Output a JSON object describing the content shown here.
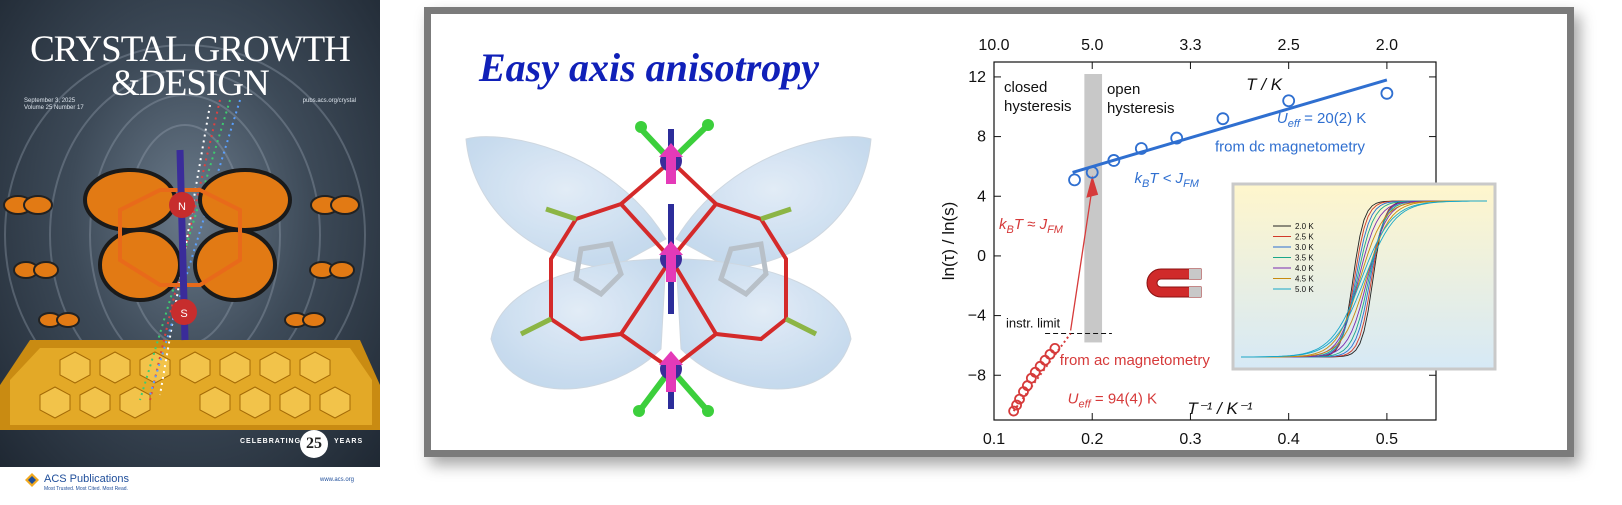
{
  "cover": {
    "title_line1": "CRYSTAL GROWTH",
    "title_line2": "&DESIGN",
    "date": "September 3, 2025",
    "volume": "Volume 25 Number 17",
    "url": "pubs.acs.org/crystal",
    "celebrating": "CELEBRATING",
    "badge": "25",
    "years": "YEARS",
    "atom_n": "N",
    "atom_s": "S"
  },
  "footer": {
    "publisher": "ACS Publications",
    "tagline": "Most Trusted. Most Cited. Most Read.",
    "url": "www.acs.org"
  },
  "toc": {
    "headline": "Easy axis anisotropy"
  },
  "chart_data": {
    "type": "scatter",
    "xlabel": "T⁻¹ / K⁻¹",
    "ylabel": "ln(τ) / ln(s)",
    "top_axis_label": "T / K",
    "xlim": [
      0.1,
      0.55
    ],
    "ylim": [
      -11,
      13
    ],
    "x_ticks": [
      "0.1",
      "0.2",
      "0.3",
      "0.4",
      "0.5"
    ],
    "y_ticks": [
      "12",
      "8",
      "4",
      "0",
      "−4",
      "−8"
    ],
    "top_ticks": [
      "10.0",
      "5.0",
      "3.3",
      "2.5",
      "2.0"
    ],
    "series": [
      {
        "name": "from dc magnetometry",
        "color": "#2f6fd0",
        "x": [
          0.182,
          0.2,
          0.222,
          0.25,
          0.286,
          0.333,
          0.4,
          0.5
        ],
        "y": [
          5.1,
          5.6,
          6.4,
          7.2,
          7.9,
          9.2,
          10.4,
          10.9
        ]
      },
      {
        "name": "from ac magnetometry",
        "color": "#d63a3a",
        "x": [
          0.12,
          0.123,
          0.126,
          0.13,
          0.134,
          0.138,
          0.142,
          0.147,
          0.152,
          0.157,
          0.162
        ],
        "y": [
          -10.4,
          -10.0,
          -9.6,
          -9.1,
          -8.7,
          -8.2,
          -7.8,
          -7.4,
          -7.0,
          -6.6,
          -6.2
        ]
      }
    ],
    "fit_dc": {
      "x": [
        0.18,
        0.5
      ],
      "y": [
        5.6,
        11.8
      ]
    },
    "fit_ac": {
      "x": [
        0.12,
        0.178
      ],
      "y": [
        -10.4,
        -5.2
      ]
    },
    "instr_limit_y": -5.2,
    "band_x": [
      0.192,
      0.21
    ],
    "annotations": {
      "closed": "closed",
      "closed2": "hysteresis",
      "open": "open",
      "open2": "hysteresis",
      "instr": "instr. limit",
      "ueff_dc": "U",
      "ueff_dc_sub": "eff",
      "ueff_dc_val": " = 20(2) K",
      "from_dc": "from dc magnetometry",
      "kbt_lt": "k",
      "kbt_lt_sub": "B",
      "kbt_lt_rest": "T < J",
      "kbt_lt_sub2": "FM",
      "kbt_eq": "k",
      "kbt_eq_sub": "B",
      "kbt_eq_rest": "T ≈ J",
      "kbt_eq_sub2": "FM",
      "from_ac": "from ac magnetometry",
      "ueff_ac": "U",
      "ueff_ac_sub": "eff",
      "ueff_ac_val": " = 94(4) K"
    },
    "colors": {
      "dc": "#2f6fd0",
      "ac": "#d63a3a",
      "band": "#c8c8c8"
    }
  },
  "inset": {
    "legend": [
      "2.0 K",
      "2.5 K",
      "3.0 K",
      "3.5 K",
      "4.0 K",
      "4.5 K",
      "5.0 K"
    ],
    "colors": [
      "#222222",
      "#d23a2a",
      "#2a6fd2",
      "#1aa78a",
      "#7a2ab0",
      "#c78a10",
      "#18a7c8"
    ]
  }
}
